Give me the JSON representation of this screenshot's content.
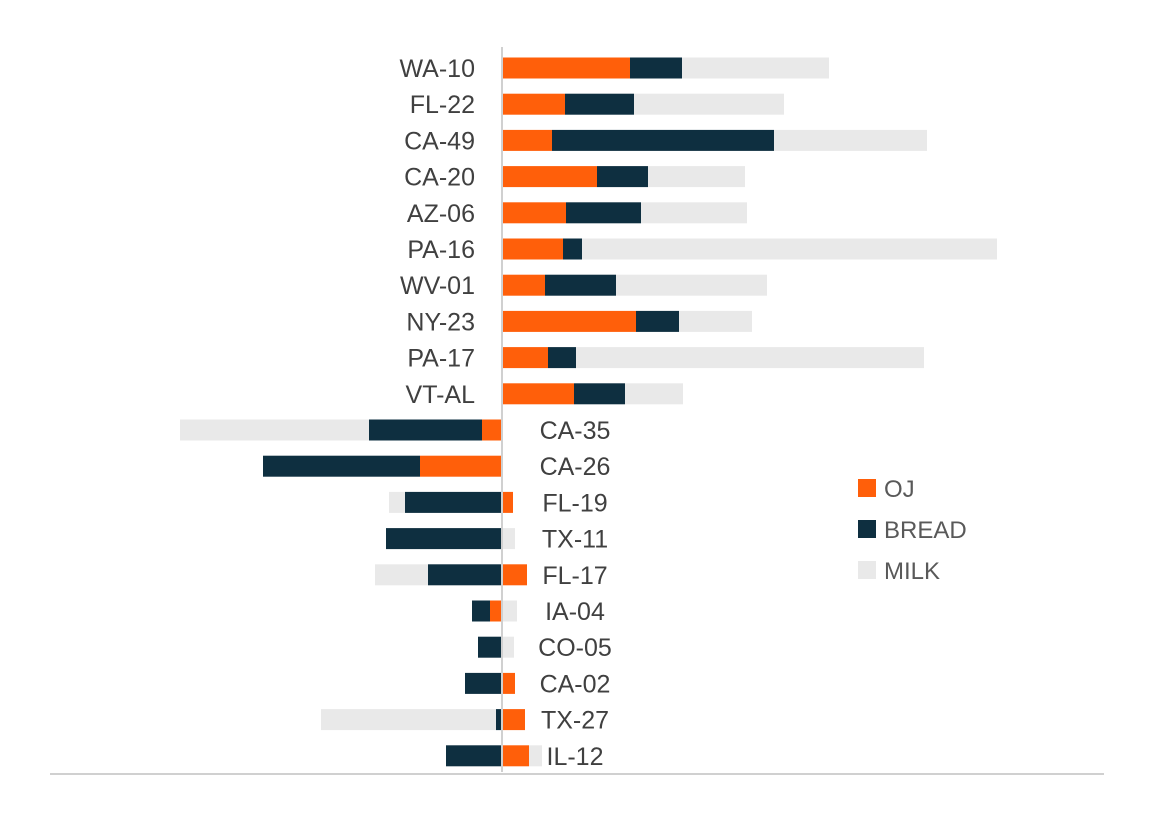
{
  "chart_data": {
    "type": "bar",
    "orientation": "horizontal",
    "stacked": true,
    "categories": [
      "WA-10",
      "FL-22",
      "CA-49",
      "CA-20",
      "AZ-06",
      "PA-16",
      "WV-01",
      "NY-23",
      "PA-17",
      "VT-AL",
      "CA-35",
      "CA-26",
      "FL-19",
      "TX-11",
      "FL-17",
      "IA-04",
      "CO-05",
      "CA-02",
      "TX-27",
      "IL-12"
    ],
    "series": [
      {
        "name": "OJ",
        "color": "#FF5F0A",
        "values": [
          128,
          63,
          50,
          95,
          64,
          61,
          43,
          134,
          46,
          72,
          -20,
          -82,
          11,
          0,
          25,
          -12,
          0,
          13,
          23,
          27
        ]
      },
      {
        "name": "BREAD",
        "color": "#0E2F40",
        "values": [
          52,
          69,
          222,
          51,
          75,
          19,
          71,
          43,
          28,
          51,
          -113,
          -157,
          -97,
          -116,
          -74,
          -18,
          -24,
          -37,
          -6,
          -56
        ]
      },
      {
        "name": "MILK",
        "color": "#E9E9E9",
        "values": [
          147,
          150,
          153,
          97,
          106,
          415,
          151,
          73,
          348,
          58,
          -189,
          0,
          -16,
          13,
          -53,
          15,
          12,
          0,
          -175,
          13
        ]
      }
    ],
    "title": "",
    "xlabel": "",
    "ylabel": "",
    "legend_position": "right",
    "grid": false
  }
}
